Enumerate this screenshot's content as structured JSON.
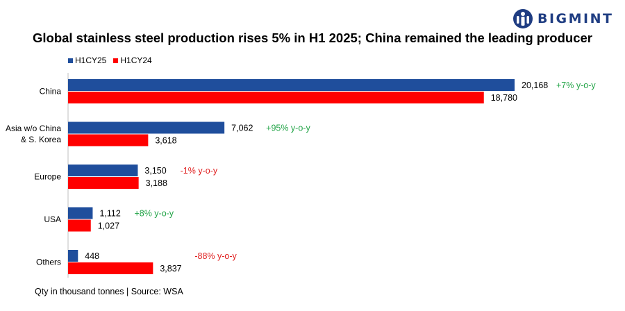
{
  "brand": {
    "name": "BIGMINT",
    "color": "#1f3d82"
  },
  "chart_data": {
    "type": "bar",
    "orientation": "horizontal",
    "title": "Global stainless steel production rises 5% in H1 2025; China remained the leading producer",
    "categories": [
      "China",
      "Asia w/o China\n& S. Korea",
      "Europe",
      "USA",
      "Others"
    ],
    "series": [
      {
        "name": "H1CY25",
        "color": "#1f4e9c",
        "values": [
          20168,
          7062,
          3150,
          1112,
          448
        ],
        "labels": [
          "20,168",
          "7,062",
          "3,150",
          "1,112",
          "448"
        ]
      },
      {
        "name": "H1CY24",
        "color": "#ff0000",
        "values": [
          18780,
          3618,
          3188,
          1027,
          3837
        ],
        "labels": [
          "18,780",
          "3,618",
          "3,188",
          "1,027",
          "3,837"
        ]
      }
    ],
    "annotations": [
      {
        "text": "+7% y-o-y",
        "color": "#22a447"
      },
      {
        "text": "+95% y-o-y",
        "color": "#22a447"
      },
      {
        "text": "-1% y-o-y",
        "color": "#e02020"
      },
      {
        "text": "+8% y-o-y",
        "color": "#22a447"
      },
      {
        "text": "-88% y-o-y",
        "color": "#e02020"
      }
    ],
    "xlabel": "",
    "ylabel": "",
    "xlim": [
      0,
      20168
    ],
    "legend": "top-left"
  },
  "footer": {
    "source": "Qty in thousand tonnes | Source: WSA"
  }
}
